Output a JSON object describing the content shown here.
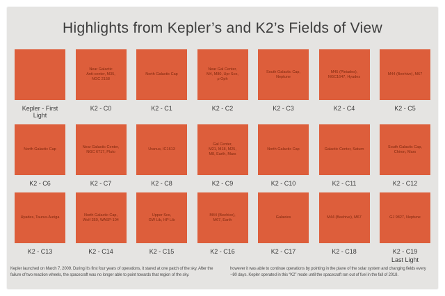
{
  "title": "Highlights from Kepler’s and K2’s Fields of View",
  "colors": {
    "panel": "#e5e4e2",
    "tile": "#dd5e3b",
    "tile_text": "#802a10",
    "label": "#3a3a3a",
    "footer": "#4e4e4e"
  },
  "tiles": [
    {
      "label": "Kepler - First Light",
      "sublabel": "",
      "content": ""
    },
    {
      "label": "K2 - C0",
      "sublabel": "",
      "content": "Near Galactic\nAnti-center, M35,\nNGC 2158"
    },
    {
      "label": "K2 - C1",
      "sublabel": "",
      "content": "North Galactic Cap"
    },
    {
      "label": "K2 - C2",
      "sublabel": "",
      "content": "Near Gal Center,\nM4, M80, Upr Sco,\nρ Oph"
    },
    {
      "label": "K2 - C3",
      "sublabel": "",
      "content": "South Galactic Cap,\nNeptune"
    },
    {
      "label": "K2 - C4",
      "sublabel": "",
      "content": "M45 (Pleiades),\nNGC1647, Hyades"
    },
    {
      "label": "K2 - C5",
      "sublabel": "",
      "content": "M44 (Beehive), M67"
    },
    {
      "label": "K2 - C6",
      "sublabel": "",
      "content": "North Galactic Cap"
    },
    {
      "label": "K2 - C7",
      "sublabel": "",
      "content": "Near Galactic Center,\nNGC 6717, Pluto"
    },
    {
      "label": "K2 - C8",
      "sublabel": "",
      "content": "Uranus, IC1613"
    },
    {
      "label": "K2 - C9",
      "sublabel": "",
      "content": "Gal Center,\nM21, M18, M25,\nM8, Earth, Mars"
    },
    {
      "label": "K2 - C10",
      "sublabel": "",
      "content": "North Galactic Cap"
    },
    {
      "label": "K2 - C11",
      "sublabel": "",
      "content": "Galactic Center, Saturn"
    },
    {
      "label": "K2 - C12",
      "sublabel": "",
      "content": "South Galactic Cap,\nChiron, Mars"
    },
    {
      "label": "K2 - C13",
      "sublabel": "",
      "content": "Hyades, Taurus-Auriga"
    },
    {
      "label": "K2 - C14",
      "sublabel": "",
      "content": "North Galactic Cap,\nWolf 359, WASP-104"
    },
    {
      "label": "K2 - C15",
      "sublabel": "",
      "content": "Upper Sco,\nGW Lib, HP Lib"
    },
    {
      "label": "K2 - C16",
      "sublabel": "",
      "content": "M44 (Beehive),\nM67, Earth"
    },
    {
      "label": "K2 - C17",
      "sublabel": "",
      "content": "Galaxies"
    },
    {
      "label": "K2 - C18",
      "sublabel": "",
      "content": "M44 (Beehive), M67"
    },
    {
      "label": "K2 - C19",
      "sublabel": "Last Light",
      "content": "GJ 9827, Neptune"
    }
  ],
  "footer": {
    "left": "Kepler launched on March 7, 2009. During it’s first four years of operations, it stared at one patch of the sky. After the failure of two reaction wheels, the spacecraft was no longer able to point towards that region of the sky.",
    "right": "however it was able to continue operations by pointing in the plane of the solar system and changing fields every ~80 days. Kepler operated in this “K2” mode until the spacecraft ran out of fuel in the fall of 2018."
  }
}
